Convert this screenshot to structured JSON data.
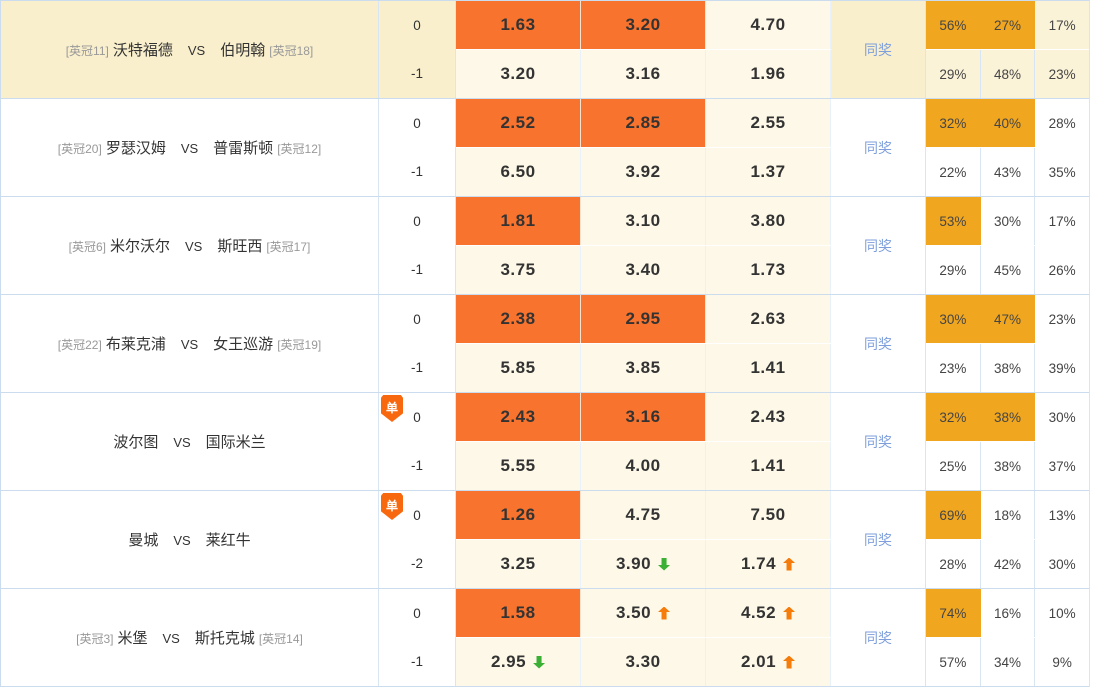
{
  "legend": {
    "same_prize_label": "同奖",
    "single_badge_label": "单"
  },
  "colors": {
    "odds_highlight": "#f8732d",
    "percent_highlight": "#f0a71f",
    "row_highlight": "#f9efcc",
    "odds_bg": "#fdf8e7",
    "trend_up": "#f57c0b",
    "trend_down": "#3cb035",
    "same_prize_text": "#7e9fdc"
  },
  "matches": [
    {
      "home_tag": "[英冠11]",
      "home": "沃特福德",
      "vs": "VS",
      "away": "伯明翰",
      "away_tag": "[英冠18]",
      "single": false,
      "highlighted": true,
      "lines": [
        {
          "handicap": "0",
          "odds": [
            {
              "v": "1.63",
              "hl": true,
              "trend": null
            },
            {
              "v": "3.20",
              "hl": true,
              "trend": null
            },
            {
              "v": "4.70",
              "hl": false,
              "trend": null
            }
          ],
          "pcts": [
            {
              "v": "56%",
              "hl": true
            },
            {
              "v": "27%",
              "hl": true
            },
            {
              "v": "17%",
              "hl": false
            }
          ]
        },
        {
          "handicap": "-1",
          "odds": [
            {
              "v": "3.20",
              "hl": false,
              "trend": null
            },
            {
              "v": "3.16",
              "hl": false,
              "trend": null
            },
            {
              "v": "1.96",
              "hl": false,
              "trend": null
            }
          ],
          "pcts": [
            {
              "v": "29%",
              "hl": false
            },
            {
              "v": "48%",
              "hl": false
            },
            {
              "v": "23%",
              "hl": false
            }
          ]
        }
      ]
    },
    {
      "home_tag": "[英冠20]",
      "home": "罗瑟汉姆",
      "vs": "VS",
      "away": "普雷斯顿",
      "away_tag": "[英冠12]",
      "single": false,
      "highlighted": false,
      "lines": [
        {
          "handicap": "0",
          "odds": [
            {
              "v": "2.52",
              "hl": true,
              "trend": null
            },
            {
              "v": "2.85",
              "hl": true,
              "trend": null
            },
            {
              "v": "2.55",
              "hl": false,
              "trend": null
            }
          ],
          "pcts": [
            {
              "v": "32%",
              "hl": true
            },
            {
              "v": "40%",
              "hl": true
            },
            {
              "v": "28%",
              "hl": false
            }
          ]
        },
        {
          "handicap": "-1",
          "odds": [
            {
              "v": "6.50",
              "hl": false,
              "trend": null
            },
            {
              "v": "3.92",
              "hl": false,
              "trend": null
            },
            {
              "v": "1.37",
              "hl": false,
              "trend": null
            }
          ],
          "pcts": [
            {
              "v": "22%",
              "hl": false
            },
            {
              "v": "43%",
              "hl": false
            },
            {
              "v": "35%",
              "hl": false
            }
          ]
        }
      ]
    },
    {
      "home_tag": "[英冠6]",
      "home": "米尔沃尔",
      "vs": "VS",
      "away": "斯旺西",
      "away_tag": "[英冠17]",
      "single": false,
      "highlighted": false,
      "lines": [
        {
          "handicap": "0",
          "odds": [
            {
              "v": "1.81",
              "hl": true,
              "trend": null
            },
            {
              "v": "3.10",
              "hl": false,
              "trend": null
            },
            {
              "v": "3.80",
              "hl": false,
              "trend": null
            }
          ],
          "pcts": [
            {
              "v": "53%",
              "hl": true
            },
            {
              "v": "30%",
              "hl": false
            },
            {
              "v": "17%",
              "hl": false
            }
          ]
        },
        {
          "handicap": "-1",
          "odds": [
            {
              "v": "3.75",
              "hl": false,
              "trend": null
            },
            {
              "v": "3.40",
              "hl": false,
              "trend": null
            },
            {
              "v": "1.73",
              "hl": false,
              "trend": null
            }
          ],
          "pcts": [
            {
              "v": "29%",
              "hl": false
            },
            {
              "v": "45%",
              "hl": false
            },
            {
              "v": "26%",
              "hl": false
            }
          ]
        }
      ]
    },
    {
      "home_tag": "[英冠22]",
      "home": "布莱克浦",
      "vs": "VS",
      "away": "女王巡游",
      "away_tag": "[英冠19]",
      "single": false,
      "highlighted": false,
      "lines": [
        {
          "handicap": "0",
          "odds": [
            {
              "v": "2.38",
              "hl": true,
              "trend": null
            },
            {
              "v": "2.95",
              "hl": true,
              "trend": null
            },
            {
              "v": "2.63",
              "hl": false,
              "trend": null
            }
          ],
          "pcts": [
            {
              "v": "30%",
              "hl": true
            },
            {
              "v": "47%",
              "hl": true
            },
            {
              "v": "23%",
              "hl": false
            }
          ]
        },
        {
          "handicap": "-1",
          "odds": [
            {
              "v": "5.85",
              "hl": false,
              "trend": null
            },
            {
              "v": "3.85",
              "hl": false,
              "trend": null
            },
            {
              "v": "1.41",
              "hl": false,
              "trend": null
            }
          ],
          "pcts": [
            {
              "v": "23%",
              "hl": false
            },
            {
              "v": "38%",
              "hl": false
            },
            {
              "v": "39%",
              "hl": false
            }
          ]
        }
      ]
    },
    {
      "home_tag": null,
      "home": "波尔图",
      "vs": "VS",
      "away": "国际米兰",
      "away_tag": null,
      "single": true,
      "highlighted": false,
      "lines": [
        {
          "handicap": "0",
          "odds": [
            {
              "v": "2.43",
              "hl": true,
              "trend": null
            },
            {
              "v": "3.16",
              "hl": true,
              "trend": null
            },
            {
              "v": "2.43",
              "hl": false,
              "trend": null
            }
          ],
          "pcts": [
            {
              "v": "32%",
              "hl": true
            },
            {
              "v": "38%",
              "hl": true
            },
            {
              "v": "30%",
              "hl": false
            }
          ]
        },
        {
          "handicap": "-1",
          "odds": [
            {
              "v": "5.55",
              "hl": false,
              "trend": null
            },
            {
              "v": "4.00",
              "hl": false,
              "trend": null
            },
            {
              "v": "1.41",
              "hl": false,
              "trend": null
            }
          ],
          "pcts": [
            {
              "v": "25%",
              "hl": false
            },
            {
              "v": "38%",
              "hl": false
            },
            {
              "v": "37%",
              "hl": false
            }
          ]
        }
      ]
    },
    {
      "home_tag": null,
      "home": "曼城",
      "vs": "VS",
      "away": "莱红牛",
      "away_tag": null,
      "single": true,
      "highlighted": false,
      "lines": [
        {
          "handicap": "0",
          "odds": [
            {
              "v": "1.26",
              "hl": true,
              "trend": null
            },
            {
              "v": "4.75",
              "hl": false,
              "trend": null
            },
            {
              "v": "7.50",
              "hl": false,
              "trend": null
            }
          ],
          "pcts": [
            {
              "v": "69%",
              "hl": true
            },
            {
              "v": "18%",
              "hl": false
            },
            {
              "v": "13%",
              "hl": false
            }
          ]
        },
        {
          "handicap": "-2",
          "odds": [
            {
              "v": "3.25",
              "hl": false,
              "trend": null
            },
            {
              "v": "3.90",
              "hl": false,
              "trend": "down"
            },
            {
              "v": "1.74",
              "hl": false,
              "trend": "up"
            }
          ],
          "pcts": [
            {
              "v": "28%",
              "hl": false
            },
            {
              "v": "42%",
              "hl": false
            },
            {
              "v": "30%",
              "hl": false
            }
          ]
        }
      ]
    },
    {
      "home_tag": "[英冠3]",
      "home": "米堡",
      "vs": "VS",
      "away": "斯托克城",
      "away_tag": "[英冠14]",
      "single": false,
      "highlighted": false,
      "lines": [
        {
          "handicap": "0",
          "odds": [
            {
              "v": "1.58",
              "hl": true,
              "trend": null
            },
            {
              "v": "3.50",
              "hl": false,
              "trend": "up"
            },
            {
              "v": "4.52",
              "hl": false,
              "trend": "up"
            }
          ],
          "pcts": [
            {
              "v": "74%",
              "hl": true
            },
            {
              "v": "16%",
              "hl": false
            },
            {
              "v": "10%",
              "hl": false
            }
          ]
        },
        {
          "handicap": "-1",
          "odds": [
            {
              "v": "2.95",
              "hl": false,
              "trend": "down"
            },
            {
              "v": "3.30",
              "hl": false,
              "trend": null
            },
            {
              "v": "2.01",
              "hl": false,
              "trend": "up"
            }
          ],
          "pcts": [
            {
              "v": "57%",
              "hl": false
            },
            {
              "v": "34%",
              "hl": false
            },
            {
              "v": "9%",
              "hl": false
            }
          ]
        }
      ]
    }
  ]
}
